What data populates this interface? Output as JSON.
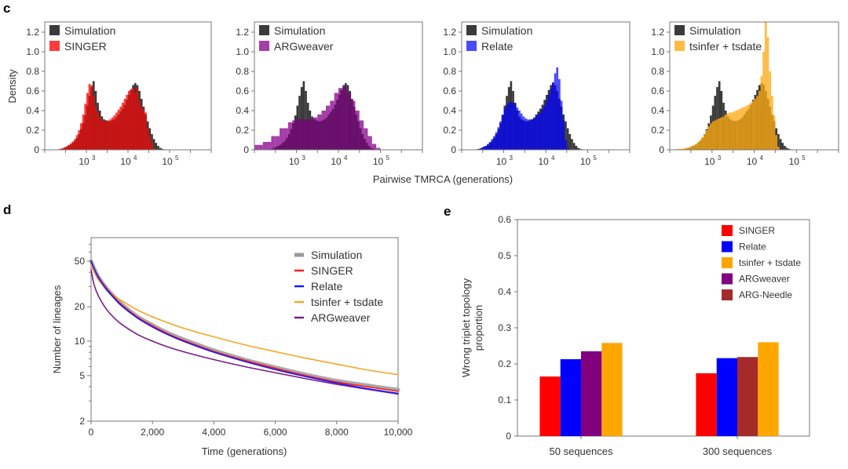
{
  "chart_data": [
    {
      "id": "c",
      "panel_label": "c",
      "type": "histogram",
      "xlabel": "Pairwise TMRCA (generations)",
      "ylabel": "Density",
      "xscale": "log",
      "xlim_log10": [
        2,
        6
      ],
      "ylim": [
        0,
        1.3
      ],
      "yticks": [
        "0",
        "0.2",
        "0.4",
        "0.6",
        "0.8",
        "1.0",
        "1.2"
      ],
      "xticks": [
        {
          "exp": "3",
          "base": "10"
        },
        {
          "exp": "4",
          "base": "10"
        },
        {
          "exp": "5",
          "base": "10"
        }
      ],
      "legend_position": "top-left",
      "simulation": {
        "name": "Simulation",
        "color": "#3a3a3a",
        "bin_width_log10": 0.05,
        "bin_start_log10": 2.35,
        "density": [
          0.005,
          0.01,
          0.02,
          0.03,
          0.04,
          0.05,
          0.07,
          0.09,
          0.12,
          0.16,
          0.21,
          0.27,
          0.35,
          0.45,
          0.55,
          0.64,
          0.7,
          0.6,
          0.48,
          0.4,
          0.34,
          0.31,
          0.3,
          0.29,
          0.29,
          0.3,
          0.31,
          0.33,
          0.36,
          0.39,
          0.42,
          0.46,
          0.51,
          0.56,
          0.61,
          0.66,
          0.68,
          0.66,
          0.6,
          0.52,
          0.44,
          0.36,
          0.29,
          0.22,
          0.16,
          0.11,
          0.07,
          0.04,
          0.02,
          0.01,
          0.005
        ]
      },
      "subpanels": [
        {
          "method": "SINGER",
          "color": "#ff3b3b",
          "overlap_color": "#c81414",
          "bin_width_log10": 0.05,
          "bin_start_log10": 2.3,
          "density": [
            0.005,
            0.01,
            0.015,
            0.025,
            0.035,
            0.05,
            0.065,
            0.085,
            0.11,
            0.15,
            0.2,
            0.27,
            0.36,
            0.47,
            0.58,
            0.67,
            0.66,
            0.55,
            0.45,
            0.38,
            0.33,
            0.31,
            0.29,
            0.29,
            0.3,
            0.31,
            0.33,
            0.35,
            0.38,
            0.41,
            0.44,
            0.48,
            0.52,
            0.56,
            0.6,
            0.62,
            0.63,
            0.58,
            0.63,
            0.5,
            0.43,
            0.42,
            0.38,
            0.22,
            0.14,
            0.07,
            0.02
          ]
        },
        {
          "method": "ARGweaver",
          "color": "#a43ea8",
          "overlap_color": "#6b0f6e",
          "bin_width_log10": 0.25,
          "bin_start_log10": 2.0,
          "density_fine": true,
          "bin_start_fine_log10": 2.0,
          "bin_width_fine_log10": 0.1,
          "density": [
            0.05,
            0.05,
            0.08,
            0.08,
            0.14,
            0.14,
            0.22,
            0.22,
            0.28,
            0.3,
            0.31,
            0.31,
            0.31,
            0.31,
            0.33,
            0.36,
            0.4,
            0.45,
            0.5,
            0.58,
            0.63,
            0.64,
            0.58,
            0.5,
            0.4,
            0.3,
            0.22,
            0.14,
            0.06,
            0.02
          ]
        },
        {
          "method": "Relate",
          "color": "#4a4aff",
          "overlap_color": "#1010d0",
          "bin_width_log10": 0.05,
          "bin_start_log10": 2.35,
          "density": [
            0.005,
            0.01,
            0.02,
            0.03,
            0.04,
            0.06,
            0.08,
            0.11,
            0.14,
            0.18,
            0.23,
            0.29,
            0.36,
            0.42,
            0.46,
            0.48,
            0.49,
            0.48,
            0.46,
            0.43,
            0.4,
            0.37,
            0.34,
            0.32,
            0.31,
            0.31,
            0.31,
            0.32,
            0.34,
            0.36,
            0.38,
            0.41,
            0.45,
            0.5,
            0.56,
            0.62,
            0.69,
            0.78,
            0.84,
            0.72,
            0.5,
            0.3,
            0.1,
            0.02,
            0,
            0,
            0,
            0,
            0,
            0,
            0
          ]
        },
        {
          "method": "tsinfer + tsdate",
          "color": "#ffbb44",
          "overlap_color": "#d69418",
          "bin_width_log10": 0.05,
          "bin_start_log10": 2.15,
          "density": [
            0.01,
            0.01,
            0.01,
            0.015,
            0.02,
            0.025,
            0.03,
            0.04,
            0.05,
            0.06,
            0.08,
            0.1,
            0.13,
            0.16,
            0.2,
            0.24,
            0.27,
            0.29,
            0.3,
            0.31,
            0.32,
            0.33,
            0.34,
            0.36,
            0.37,
            0.38,
            0.38,
            0.39,
            0.4,
            0.41,
            0.42,
            0.43,
            0.44,
            0.45,
            0.46,
            0.48,
            0.5,
            0.52,
            0.55,
            0.6,
            0.75,
            1.0,
            1.3,
            1.15,
            0.8,
            0.55,
            0.35,
            0.15,
            0.03
          ]
        }
      ]
    },
    {
      "id": "d",
      "panel_label": "d",
      "type": "line",
      "xlabel": "Time (generations)",
      "ylabel": "Number of lineages",
      "yscale": "log",
      "xlim": [
        0,
        10000
      ],
      "ylim": [
        2,
        70
      ],
      "xticks": [
        "0",
        "2,000",
        "4,000",
        "6,000",
        "8,000",
        "10,000"
      ],
      "xtick_values": [
        0,
        2000,
        4000,
        6000,
        8000,
        10000
      ],
      "yticks": [
        "2",
        "5",
        "10",
        "20",
        "50"
      ],
      "ytick_values": [
        2,
        5,
        10,
        20,
        50
      ],
      "legend_position": "top-right",
      "x": [
        0,
        100,
        250,
        500,
        750,
        1000,
        1500,
        2000,
        2500,
        3000,
        4000,
        5000,
        6000,
        7000,
        8000,
        9000,
        10000
      ],
      "series": [
        {
          "name": "Simulation",
          "color": "#999999",
          "width": "thick",
          "values": [
            50,
            43,
            36,
            29,
            24.5,
            21,
            16.5,
            13.8,
            11.8,
            10.4,
            8.3,
            6.9,
            5.9,
            5.1,
            4.5,
            4.1,
            3.75
          ]
        },
        {
          "name": "SINGER",
          "color": "#ff1a1a",
          "width": "normal",
          "values": [
            50,
            43,
            36,
            29,
            24.3,
            20.8,
            16.3,
            13.6,
            11.6,
            10.2,
            8.15,
            6.8,
            5.8,
            5.0,
            4.4,
            4.0,
            3.65
          ]
        },
        {
          "name": "Relate",
          "color": "#1a1aff",
          "width": "normal",
          "values": [
            50,
            43,
            35.5,
            28.5,
            23.8,
            20.3,
            16.0,
            13.3,
            11.4,
            10.0,
            8.0,
            6.65,
            5.65,
            4.9,
            4.3,
            3.85,
            3.5
          ]
        },
        {
          "name": "tsinfer + tsdate",
          "color": "#f5a623",
          "width": "normal",
          "values": [
            47,
            40,
            34,
            28.5,
            25,
            22.5,
            18.8,
            16.3,
            14.5,
            13.0,
            10.9,
            9.3,
            8.1,
            7.1,
            6.3,
            5.6,
            5.1
          ]
        },
        {
          "name": "ARGweaver",
          "color": "#7a1a8c",
          "width": "normal",
          "values": [
            42,
            31,
            24.5,
            19,
            16,
            14,
            11.5,
            10.0,
            8.9,
            8.1,
            6.9,
            6.0,
            5.3,
            4.7,
            4.2,
            3.8,
            3.45
          ]
        }
      ]
    },
    {
      "id": "e",
      "panel_label": "e",
      "type": "bar",
      "ylabel": "Wrong triplet topology proportion",
      "ylabel_lines": [
        "Wrong triplet topology",
        "proportion"
      ],
      "ylim": [
        0,
        0.6
      ],
      "yticks": [
        "0",
        "0.1",
        "0.2",
        "0.3",
        "0.4",
        "0.5",
        "0.6"
      ],
      "ytick_values": [
        0,
        0.1,
        0.2,
        0.3,
        0.4,
        0.5,
        0.6
      ],
      "categories": [
        "50 sequences",
        "300 sequences"
      ],
      "legend_position": "top-right",
      "legend": [
        {
          "name": "SINGER",
          "color": "#ff0000"
        },
        {
          "name": "Relate",
          "color": "#0000ff"
        },
        {
          "name": "tsinfer + tsdate",
          "color": "#ffa500"
        },
        {
          "name": "ARGweaver",
          "color": "#800080"
        },
        {
          "name": "ARG-Needle",
          "color": "#a52a2a"
        }
      ],
      "groups": [
        {
          "category": "50 sequences",
          "bars": [
            {
              "name": "SINGER",
              "value": 0.165,
              "color": "#ff0000"
            },
            {
              "name": "Relate",
              "value": 0.213,
              "color": "#0000ff"
            },
            {
              "name": "ARGweaver",
              "value": 0.235,
              "color": "#800080"
            },
            {
              "name": "tsinfer + tsdate",
              "value": 0.258,
              "color": "#ffa500"
            }
          ]
        },
        {
          "category": "300 sequences",
          "bars": [
            {
              "name": "SINGER",
              "value": 0.174,
              "color": "#ff0000"
            },
            {
              "name": "Relate",
              "value": 0.216,
              "color": "#0000ff"
            },
            {
              "name": "ARG-Needle",
              "value": 0.219,
              "color": "#a52a2a"
            },
            {
              "name": "tsinfer + tsdate",
              "value": 0.26,
              "color": "#ffa500"
            }
          ]
        }
      ]
    }
  ]
}
